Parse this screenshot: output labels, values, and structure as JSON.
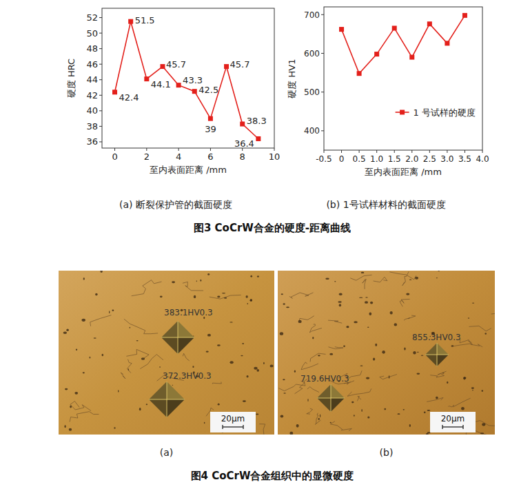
{
  "chart_data": [
    {
      "type": "line",
      "caption": "(a) 断裂保护管的截面硬度",
      "x_label": "至内表面距离 /mm",
      "y_label": "硬度 HRC",
      "x": [
        0,
        1,
        2,
        3,
        4,
        5,
        6,
        7,
        8,
        9
      ],
      "series": [
        {
          "color": "#e3201b",
          "marker": "square",
          "line_style": "solid",
          "values": [
            42.4,
            51.5,
            44.1,
            45.7,
            43.3,
            42.5,
            39,
            45.7,
            38.3,
            36.4
          ]
        }
      ],
      "xlim": [
        -0.8,
        10
      ],
      "xticks": [
        0,
        2,
        4,
        6,
        8,
        10
      ],
      "ylim": [
        35.2,
        53.2
      ],
      "yticks": [
        36,
        38,
        40,
        42,
        44,
        46,
        48,
        50,
        52
      ],
      "grid": false,
      "data_labels": true
    },
    {
      "type": "line",
      "caption": "(b) 1号试样材料的截面硬度",
      "x_label": "至内表面距离 /mm",
      "y_label": "硬度 HV1",
      "x": [
        0,
        0.5,
        1,
        1.5,
        2,
        2.5,
        3,
        3.5
      ],
      "series": [
        {
          "name": "1 号试样的硬度",
          "color": "#e3201b",
          "marker": "square",
          "line_style": "solid",
          "values": [
            662,
            548,
            598,
            665,
            590,
            676,
            626,
            698
          ]
        }
      ],
      "xlim": [
        -0.5,
        4
      ],
      "xticks": [
        -0.5,
        0,
        0.5,
        {
          "value": 1,
          "label": "1.0"
        },
        1.5,
        {
          "value": 2,
          "label": "2.0"
        },
        2.5,
        {
          "value": 3,
          "label": "3.0"
        },
        3.5,
        {
          "value": 4,
          "label": "4.0"
        }
      ],
      "ylim": [
        350,
        720
      ],
      "yticks": [
        400,
        500,
        600,
        700
      ],
      "grid": false,
      "legend": "lower right"
    }
  ],
  "figure3": {
    "title": "图3 CoCrW合金的硬度-距离曲线"
  },
  "figure4": {
    "title": "图4 CoCrW合金组织中的显微硬度",
    "panels": [
      {
        "label": "(a)",
        "indents": [
          "383.1HV0.3",
          "372.3HV0.3"
        ],
        "scale_bar": "20μm"
      },
      {
        "label": "(b)",
        "indents": [
          "855.3HV0.3",
          "719.6HV0.3"
        ],
        "scale_bar": "20μm"
      }
    ]
  }
}
